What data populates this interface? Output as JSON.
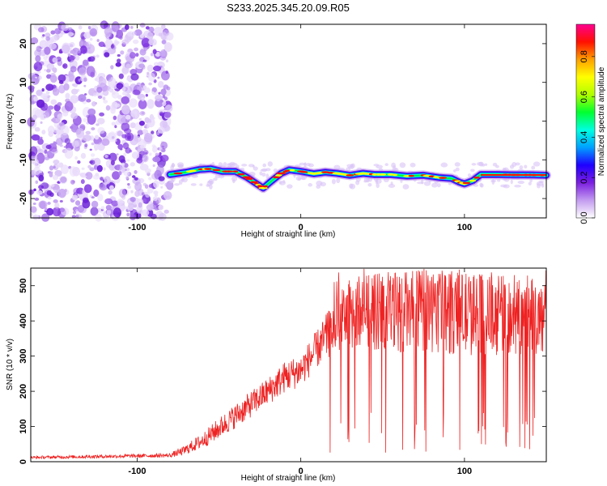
{
  "title": "S233.2025.345.20.09.R05",
  "chart_data": [
    {
      "type": "heatmap",
      "name": "spectrogram",
      "xlabel": "Height of straight line (km)",
      "ylabel": "Frequency (Hz)",
      "xlim": [
        -165,
        150
      ],
      "ylim": [
        -25,
        25
      ],
      "xticks": [
        -100,
        0,
        100
      ],
      "yticks": [
        -20,
        -10,
        0,
        10,
        20
      ],
      "colorbar": {
        "label": "Normalized spectral amplitude",
        "ticks": [
          0.0,
          0.2,
          0.4,
          0.6,
          0.8
        ],
        "range": [
          0.0,
          0.96
        ],
        "colors": [
          "#ffffff",
          "#c39bf0",
          "#7b1fe0",
          "#1f00ff",
          "#00a0ff",
          "#00ffe0",
          "#00ff30",
          "#b0ff00",
          "#ffff00",
          "#ffa000",
          "#ff1000",
          "#ff0090"
        ]
      },
      "noise_region_x": [
        -165,
        -80
      ],
      "ridge": {
        "x": [
          -80,
          -70,
          -62,
          -55,
          -48,
          -40,
          -33,
          -27,
          -23,
          -18,
          -12,
          -7,
          0,
          8,
          15,
          22,
          30,
          38,
          45,
          55,
          65,
          75,
          85,
          92,
          97,
          100,
          105,
          110,
          120,
          130,
          140,
          150
        ],
        "freq": [
          -13.8,
          -13.2,
          -12.5,
          -12.3,
          -13.0,
          -13.0,
          -14.5,
          -16.2,
          -17.3,
          -15.5,
          -13.5,
          -12.6,
          -13.0,
          -13.6,
          -13.2,
          -13.5,
          -14.0,
          -13.5,
          -13.8,
          -13.8,
          -14.2,
          -14.0,
          -14.6,
          -14.8,
          -15.8,
          -16.2,
          -15.4,
          -13.8,
          -13.8,
          -13.9,
          -13.9,
          -14.0
        ]
      }
    },
    {
      "type": "line",
      "name": "snr",
      "xlabel": "Height of straight line (km)",
      "ylabel": "SNR (10 * v/v)",
      "xlim": [
        -165,
        150
      ],
      "ylim": [
        0,
        550
      ],
      "xticks": [
        -100,
        0,
        100
      ],
      "yticks": [
        0,
        100,
        200,
        300,
        400,
        500
      ],
      "color": "#ee2222",
      "envelope": {
        "x": [
          -165,
          -120,
          -80,
          -72,
          -60,
          -50,
          -40,
          -30,
          -20,
          -10,
          0,
          10,
          15,
          20,
          25,
          30,
          40,
          60,
          80,
          100,
          120,
          140,
          150
        ],
        "level": [
          12,
          15,
          18,
          30,
          60,
          95,
          130,
          165,
          200,
          240,
          260,
          320,
          350,
          380,
          400,
          420,
          430,
          425,
          430,
          420,
          415,
          410,
          405
        ],
        "spread": [
          8,
          10,
          12,
          25,
          45,
          60,
          70,
          75,
          80,
          90,
          95,
          110,
          130,
          150,
          180,
          200,
          220,
          230,
          240,
          240,
          230,
          220,
          200
        ]
      }
    }
  ]
}
